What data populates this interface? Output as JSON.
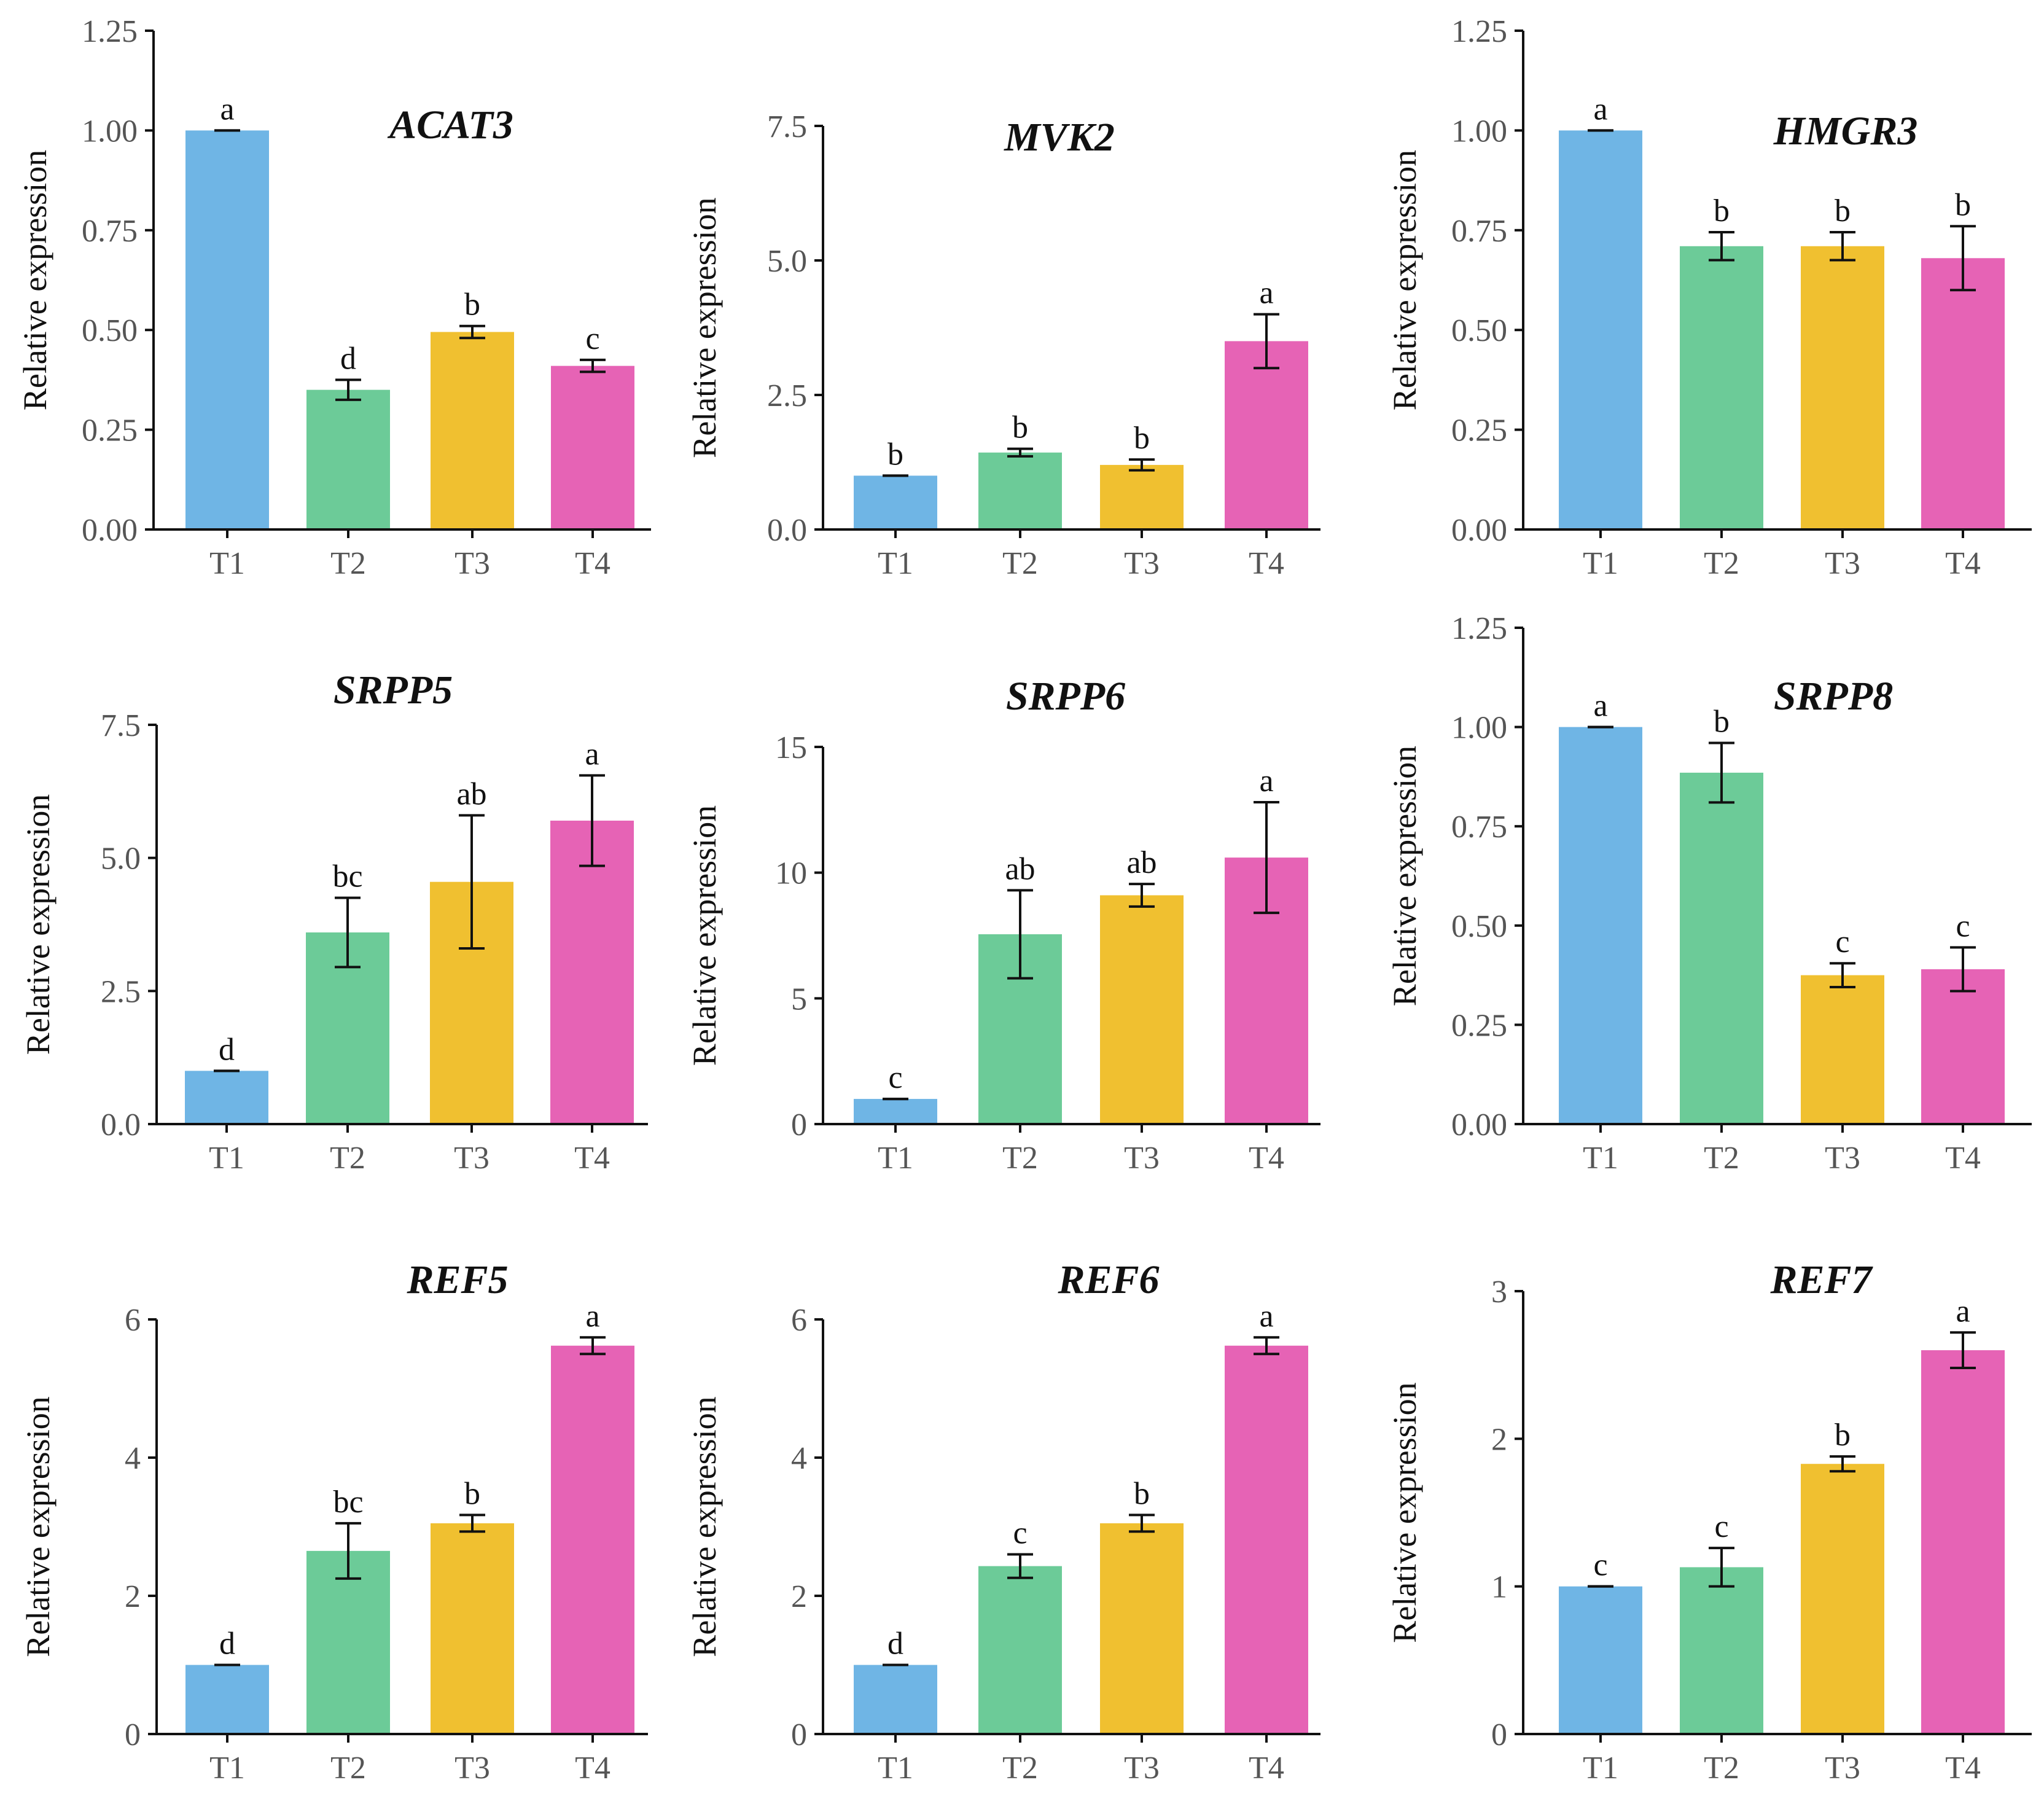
{
  "categories": [
    "T1",
    "T2",
    "T3",
    "T4"
  ],
  "colors": {
    "T1": "#6fb5e5",
    "T2": "#6ccb98",
    "T3": "#f0c030",
    "T4": "#e663b5",
    "axis": "#111111",
    "tick_text": "#555555"
  },
  "chart_data": [
    {
      "type": "bar",
      "title": "ACAT3",
      "ylabel": "Relative expression",
      "xlabel": "",
      "categories": [
        "T1",
        "T2",
        "T3",
        "T4"
      ],
      "values": [
        1.0,
        0.35,
        0.495,
        0.41
      ],
      "errors": [
        0.0,
        0.025,
        0.015,
        0.015
      ],
      "letters": [
        "a",
        "d",
        "b",
        "c"
      ],
      "ylim": [
        0,
        1.25
      ],
      "yticks": [
        0,
        0.25,
        0.5,
        0.75,
        1.0,
        1.25
      ],
      "ytick_labels": [
        "0.00",
        "0.25",
        "0.50",
        "0.75",
        "1.00",
        "1.25"
      ]
    },
    {
      "type": "bar",
      "title": "MVK2",
      "ylabel": "Relative expression",
      "xlabel": "",
      "categories": [
        "T1",
        "T2",
        "T3",
        "T4"
      ],
      "values": [
        1.0,
        1.43,
        1.2,
        3.5
      ],
      "errors": [
        0.0,
        0.07,
        0.1,
        0.5
      ],
      "letters": [
        "b",
        "b",
        "b",
        "a"
      ],
      "ylim": [
        0,
        7.5
      ],
      "yticks": [
        0,
        2.5,
        5.0,
        7.5
      ],
      "ytick_labels": [
        "0.0",
        "2.5",
        "5.0",
        "7.5"
      ]
    },
    {
      "type": "bar",
      "title": "HMGR3",
      "ylabel": "Relative expression",
      "xlabel": "",
      "categories": [
        "T1",
        "T2",
        "T3",
        "T4"
      ],
      "values": [
        1.0,
        0.71,
        0.71,
        0.68
      ],
      "errors": [
        0.0,
        0.035,
        0.035,
        0.08
      ],
      "letters": [
        "a",
        "b",
        "b",
        "b"
      ],
      "ylim": [
        0,
        1.25
      ],
      "yticks": [
        0,
        0.25,
        0.5,
        0.75,
        1.0,
        1.25
      ],
      "ytick_labels": [
        "0.00",
        "0.25",
        "0.50",
        "0.75",
        "1.00",
        "1.25"
      ]
    },
    {
      "type": "bar",
      "title": "SRPP5",
      "ylabel": "Relative expression",
      "xlabel": "",
      "categories": [
        "T1",
        "T2",
        "T3",
        "T4"
      ],
      "values": [
        1.0,
        3.6,
        4.55,
        5.7
      ],
      "errors": [
        0.0,
        0.65,
        1.25,
        0.85
      ],
      "letters": [
        "d",
        "bc",
        "ab",
        "a"
      ],
      "ylim": [
        0,
        7.5
      ],
      "yticks": [
        0,
        2.5,
        5.0,
        7.5
      ],
      "ytick_labels": [
        "0.0",
        "2.5",
        "5.0",
        "7.5"
      ]
    },
    {
      "type": "bar",
      "title": "SRPP6",
      "ylabel": "Relative expression",
      "xlabel": "",
      "categories": [
        "T1",
        "T2",
        "T3",
        "T4"
      ],
      "values": [
        1.0,
        7.55,
        9.1,
        10.6
      ],
      "errors": [
        0.0,
        1.75,
        0.45,
        2.2
      ],
      "letters": [
        "c",
        "ab",
        "ab",
        "a"
      ],
      "ylim": [
        0,
        15
      ],
      "yticks": [
        0,
        5,
        10,
        15
      ],
      "ytick_labels": [
        "0",
        "5",
        "10",
        "15"
      ]
    },
    {
      "type": "bar",
      "title": "SRPP8",
      "ylabel": "Relative expression",
      "xlabel": "",
      "categories": [
        "T1",
        "T2",
        "T3",
        "T4"
      ],
      "values": [
        1.0,
        0.885,
        0.375,
        0.39
      ],
      "errors": [
        0.0,
        0.075,
        0.03,
        0.055
      ],
      "letters": [
        "a",
        "b",
        "c",
        "c"
      ],
      "ylim": [
        0,
        1.25
      ],
      "yticks": [
        0,
        0.25,
        0.5,
        0.75,
        1.0,
        1.25
      ],
      "ytick_labels": [
        "0.00",
        "0.25",
        "0.50",
        "0.75",
        "1.00",
        "1.25"
      ]
    },
    {
      "type": "bar",
      "title": "REF5",
      "ylabel": "Relative expression",
      "xlabel": "",
      "categories": [
        "T1",
        "T2",
        "T3",
        "T4"
      ],
      "values": [
        1.0,
        2.65,
        3.05,
        5.62
      ],
      "errors": [
        0.0,
        0.4,
        0.12,
        0.12
      ],
      "letters": [
        "d",
        "bc",
        "b",
        "a"
      ],
      "ylim": [
        0,
        6
      ],
      "yticks": [
        0,
        2,
        4,
        6
      ],
      "ytick_labels": [
        "0",
        "2",
        "4",
        "6"
      ]
    },
    {
      "type": "bar",
      "title": "REF6",
      "ylabel": "Relative expression",
      "xlabel": "",
      "categories": [
        "T1",
        "T2",
        "T3",
        "T4"
      ],
      "values": [
        1.0,
        2.43,
        3.05,
        5.62
      ],
      "errors": [
        0.0,
        0.17,
        0.12,
        0.12
      ],
      "letters": [
        "d",
        "c",
        "b",
        "a"
      ],
      "ylim": [
        0,
        6
      ],
      "yticks": [
        0,
        2,
        4,
        6
      ],
      "ytick_labels": [
        "0",
        "2",
        "4",
        "6"
      ]
    },
    {
      "type": "bar",
      "title": "REF7",
      "ylabel": "Relative expression",
      "xlabel": "",
      "categories": [
        "T1",
        "T2",
        "T3",
        "T4"
      ],
      "values": [
        1.0,
        1.13,
        1.83,
        2.6
      ],
      "errors": [
        0.0,
        0.13,
        0.05,
        0.12
      ],
      "letters": [
        "c",
        "c",
        "b",
        "a"
      ],
      "ylim": [
        0,
        3
      ],
      "yticks": [
        0,
        1,
        2,
        3
      ],
      "ytick_labels": [
        "0",
        "1",
        "2",
        "3"
      ]
    }
  ]
}
